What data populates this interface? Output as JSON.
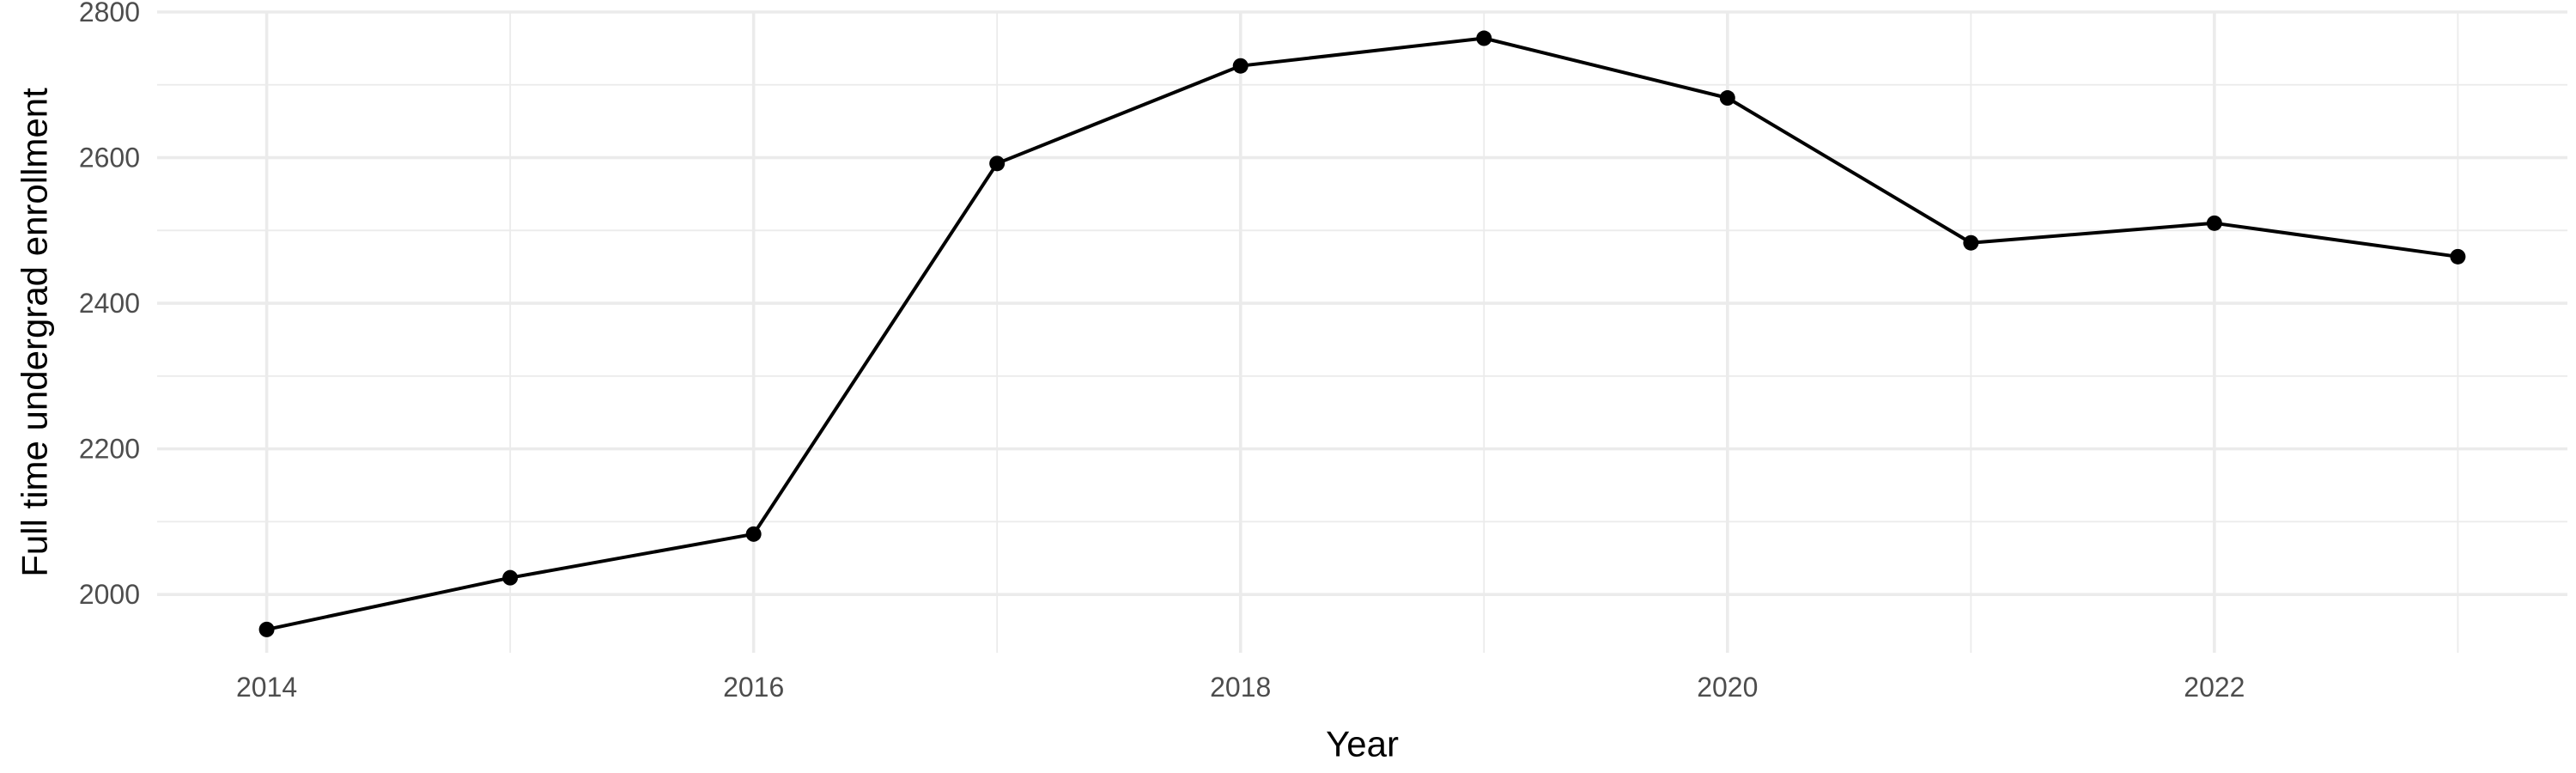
{
  "chart_data": {
    "type": "line",
    "title": "",
    "xlabel": "Year",
    "ylabel": "Full time undergrad enrollment",
    "x": [
      2014,
      2015,
      2016,
      2017,
      2018,
      2019,
      2020,
      2021,
      2022,
      2023
    ],
    "series": [
      {
        "values": [
          1952,
          2023,
          2083,
          2592,
          2726,
          2764,
          2682,
          2483,
          2510,
          2464
        ],
        "color": "#000000"
      }
    ],
    "xlim": [
      2013.55,
      2023.45
    ],
    "ylim": [
      1920,
      2800
    ],
    "x_ticks": [
      2014,
      2016,
      2018,
      2020,
      2022
    ],
    "x_minor_ticks": [
      2015,
      2017,
      2019,
      2021,
      2023
    ],
    "y_ticks": [
      2000,
      2200,
      2400,
      2600,
      2800
    ],
    "y_minor_ticks": [
      2100,
      2300,
      2500,
      2700
    ],
    "grid": true,
    "legend": "none",
    "colors": {
      "background": "#ffffff",
      "grid": "#ebebeb",
      "tick_text": "#4d4d4d",
      "axis_title": "#000000"
    }
  }
}
